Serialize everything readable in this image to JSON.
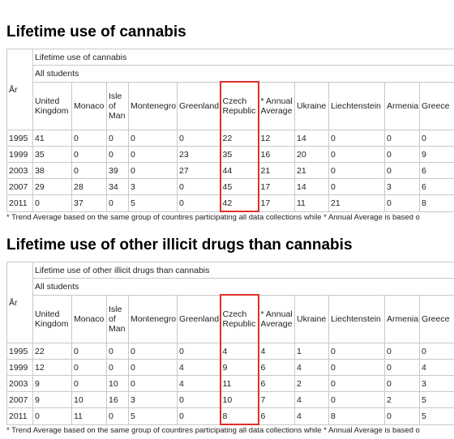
{
  "sections": [
    {
      "title": "Lifetime use of cannabis",
      "table": {
        "caption": "Lifetime use of cannabis",
        "group": "All students",
        "row_header": "År",
        "columns": [
          "United Kingdom",
          "Monaco",
          "Isle of Man",
          "Montenegro",
          "Greenland",
          "Czech Republic",
          "* Annual Average",
          "Ukraine",
          "Liechtenstein",
          "Armenia",
          "Greece"
        ],
        "rows": [
          [
            "1995",
            "41",
            "0",
            "0",
            "0",
            "0",
            "22",
            "12",
            "14",
            "0",
            "0",
            "0"
          ],
          [
            "1999",
            "35",
            "0",
            "0",
            "0",
            "23",
            "35",
            "16",
            "20",
            "0",
            "0",
            "9"
          ],
          [
            "2003",
            "38",
            "0",
            "39",
            "0",
            "27",
            "44",
            "21",
            "21",
            "0",
            "0",
            "6"
          ],
          [
            "2007",
            "29",
            "28",
            "34",
            "3",
            "0",
            "45",
            "17",
            "14",
            "0",
            "3",
            "6"
          ],
          [
            "2011",
            "0",
            "37",
            "0",
            "5",
            "0",
            "42",
            "17",
            "11",
            "21",
            "0",
            "8"
          ]
        ]
      },
      "footnote": "* Trend Average based on the same group of countires participating all data collections while * Annual Average is based o"
    },
    {
      "title": "Lifetime use of other illicit drugs than cannabis",
      "table": {
        "caption": "Lifetime use of other illicit drugs than cannabis",
        "group": "All students",
        "row_header": "År",
        "columns": [
          "United Kingdom",
          "Monaco",
          "Isle of Man",
          "Montenegro",
          "Greenland",
          "Czech Republic",
          "* Annual Average",
          "Ukraine",
          "Liechtenstein",
          "Armenia",
          "Greece"
        ],
        "rows": [
          [
            "1995",
            "22",
            "0",
            "0",
            "0",
            "0",
            "4",
            "4",
            "1",
            "0",
            "0",
            "0"
          ],
          [
            "1999",
            "12",
            "0",
            "0",
            "0",
            "4",
            "9",
            "6",
            "4",
            "0",
            "0",
            "4"
          ],
          [
            "2003",
            "9",
            "0",
            "10",
            "0",
            "4",
            "11",
            "6",
            "2",
            "0",
            "0",
            "3"
          ],
          [
            "2007",
            "9",
            "10",
            "16",
            "3",
            "0",
            "10",
            "7",
            "4",
            "0",
            "2",
            "5"
          ],
          [
            "2011",
            "0",
            "11",
            "0",
            "5",
            "0",
            "8",
            "6",
            "4",
            "8",
            "0",
            "5"
          ]
        ]
      },
      "footnote": "* Trend Average based on the same group of countires participating all data collections while * Annual Average is based o"
    }
  ]
}
